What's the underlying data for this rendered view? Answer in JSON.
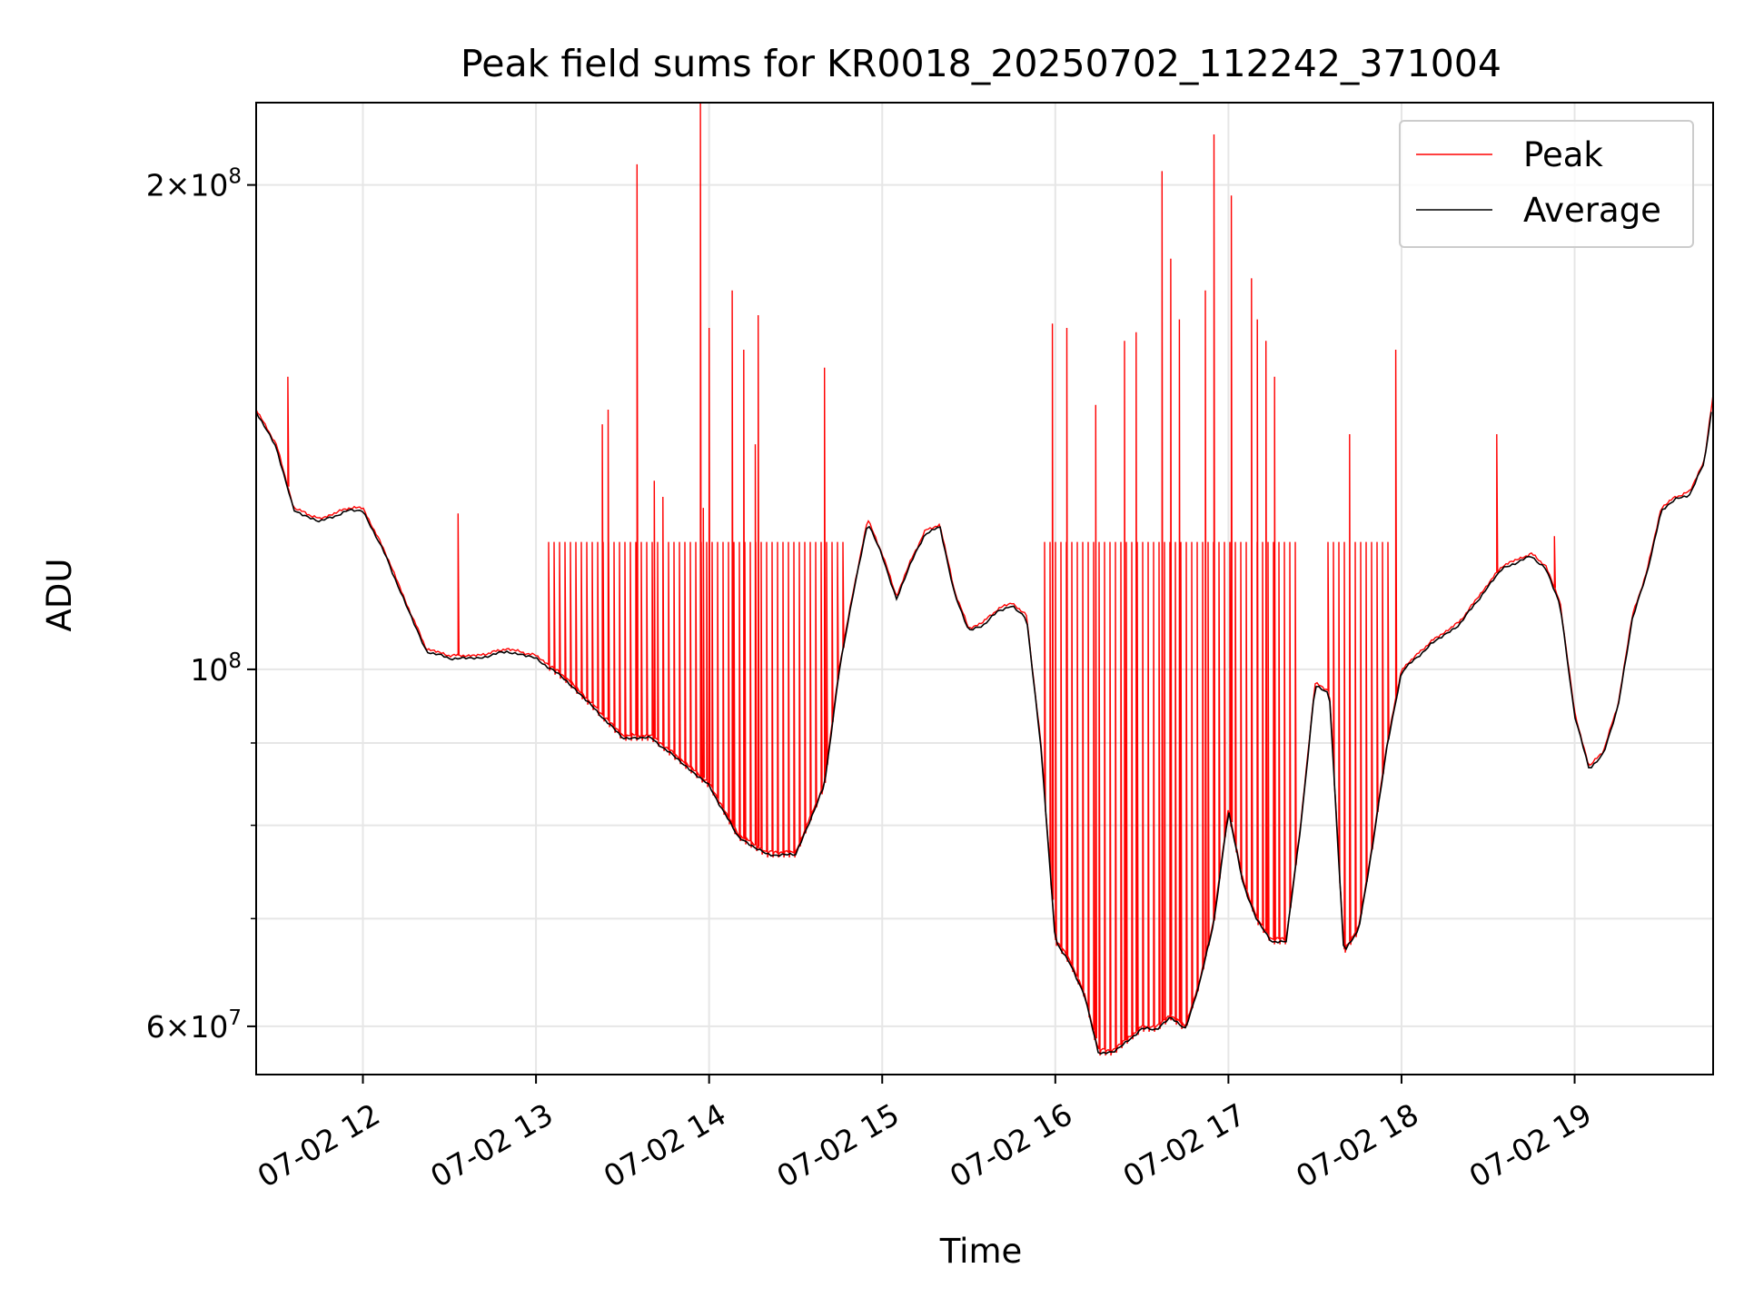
{
  "chart_data": {
    "type": "line",
    "title": "Peak field sums for KR0018_20250702_112242_371004",
    "xlabel": "Time",
    "ylabel": "ADU",
    "x_scale": "time",
    "y_scale": "log",
    "xlim": [
      "2025-07-02T11:23",
      "2025-07-02T19:48"
    ],
    "ylim": [
      56000000,
      225000000
    ],
    "x_ticks": [
      "07-02 12",
      "07-02 13",
      "07-02 14",
      "07-02 15",
      "07-02 16",
      "07-02 17",
      "07-02 18",
      "07-02 19"
    ],
    "y_major_ticks": [
      {
        "value": 100000000,
        "mantissa": "",
        "base": "10",
        "exp": "8"
      },
      {
        "value": 200000000,
        "mantissa": "2×",
        "base": "10",
        "exp": "8"
      },
      {
        "value": 60000000,
        "mantissa": "6×",
        "base": "10",
        "exp": "7"
      }
    ],
    "y_minor_ticks": [
      70000000,
      80000000,
      90000000
    ],
    "grid": true,
    "legend_position": "top-right",
    "series": [
      {
        "name": "Average",
        "color": "#000000",
        "x": [
          "2025-07-02T11:23",
          "2025-07-02T11:30",
          "2025-07-02T11:36",
          "2025-07-02T11:45",
          "2025-07-02T11:55",
          "2025-07-02T12:00",
          "2025-07-02T12:08",
          "2025-07-02T12:15",
          "2025-07-02T12:22",
          "2025-07-02T12:30",
          "2025-07-02T12:40",
          "2025-07-02T12:50",
          "2025-07-02T13:00",
          "2025-07-02T13:10",
          "2025-07-02T13:20",
          "2025-07-02T13:30",
          "2025-07-02T13:40",
          "2025-07-02T13:50",
          "2025-07-02T14:00",
          "2025-07-02T14:10",
          "2025-07-02T14:20",
          "2025-07-02T14:30",
          "2025-07-02T14:40",
          "2025-07-02T14:45",
          "2025-07-02T14:50",
          "2025-07-02T14:55",
          "2025-07-02T15:00",
          "2025-07-02T15:05",
          "2025-07-02T15:10",
          "2025-07-02T15:15",
          "2025-07-02T15:20",
          "2025-07-02T15:25",
          "2025-07-02T15:30",
          "2025-07-02T15:35",
          "2025-07-02T15:40",
          "2025-07-02T15:45",
          "2025-07-02T15:50",
          "2025-07-02T15:55",
          "2025-07-02T16:00",
          "2025-07-02T16:05",
          "2025-07-02T16:10",
          "2025-07-02T16:15",
          "2025-07-02T16:20",
          "2025-07-02T16:25",
          "2025-07-02T16:30",
          "2025-07-02T16:35",
          "2025-07-02T16:40",
          "2025-07-02T16:45",
          "2025-07-02T16:50",
          "2025-07-02T16:55",
          "2025-07-02T17:00",
          "2025-07-02T17:05",
          "2025-07-02T17:10",
          "2025-07-02T17:15",
          "2025-07-02T17:20",
          "2025-07-02T17:25",
          "2025-07-02T17:30",
          "2025-07-02T17:35",
          "2025-07-02T17:40",
          "2025-07-02T17:45",
          "2025-07-02T17:50",
          "2025-07-02T17:55",
          "2025-07-02T18:00",
          "2025-07-02T18:10",
          "2025-07-02T18:20",
          "2025-07-02T18:30",
          "2025-07-02T18:35",
          "2025-07-02T18:40",
          "2025-07-02T18:45",
          "2025-07-02T18:50",
          "2025-07-02T18:55",
          "2025-07-02T19:00",
          "2025-07-02T19:05",
          "2025-07-02T19:10",
          "2025-07-02T19:15",
          "2025-07-02T19:20",
          "2025-07-02T19:25",
          "2025-07-02T19:30",
          "2025-07-02T19:35",
          "2025-07-02T19:40",
          "2025-07-02T19:45",
          "2025-07-02T19:48"
        ],
        "values": [
          145000000,
          138000000,
          126000000,
          124000000,
          126000000,
          126000000,
          118000000,
          110000000,
          103000000,
          102000000,
          102000000,
          103000000,
          102000000,
          99000000,
          95000000,
          91000000,
          91000000,
          88000000,
          85000000,
          79000000,
          77000000,
          77000000,
          85000000,
          100000000,
          112000000,
          124000000,
          118000000,
          111000000,
          117000000,
          122000000,
          123000000,
          112000000,
          106000000,
          107000000,
          109000000,
          110000000,
          108000000,
          90000000,
          68000000,
          66000000,
          63000000,
          58000000,
          58000000,
          59000000,
          60000000,
          60000000,
          61000000,
          60000000,
          64000000,
          70000000,
          82000000,
          74000000,
          70000000,
          68000000,
          68000000,
          80000000,
          98000000,
          97000000,
          67000000,
          69000000,
          78000000,
          90000000,
          100000000,
          104000000,
          107000000,
          113000000,
          116000000,
          117000000,
          118000000,
          116000000,
          110000000,
          94000000,
          87000000,
          89000000,
          95000000,
          108000000,
          115000000,
          126000000,
          128000000,
          129000000,
          135000000,
          148000000
        ]
      },
      {
        "name": "Peak",
        "color": "#ff0000",
        "spikes": [
          {
            "x": "2025-07-02T11:34",
            "value": 152000000
          },
          {
            "x": "2025-07-02T12:33",
            "value": 125000000
          },
          {
            "x": "2025-07-02T13:23",
            "value": 142000000
          },
          {
            "x": "2025-07-02T13:25",
            "value": 145000000
          },
          {
            "x": "2025-07-02T13:35",
            "value": 206000000
          },
          {
            "x": "2025-07-02T13:41",
            "value": 131000000
          },
          {
            "x": "2025-07-02T13:44",
            "value": 128000000
          },
          {
            "x": "2025-07-02T13:58",
            "value": 126000000
          },
          {
            "x": "2025-07-02T14:08",
            "value": 172000000
          },
          {
            "x": "2025-07-02T14:12",
            "value": 158000000
          },
          {
            "x": "2025-07-02T14:16",
            "value": 138000000
          },
          {
            "x": "2025-07-02T13:57",
            "value": 225000000
          },
          {
            "x": "2025-07-02T14:00",
            "value": 163000000
          },
          {
            "x": "2025-07-02T14:17",
            "value": 166000000
          },
          {
            "x": "2025-07-02T14:40",
            "value": 154000000
          },
          {
            "x": "2025-07-02T15:59",
            "value": 164000000
          },
          {
            "x": "2025-07-02T16:04",
            "value": 163000000
          },
          {
            "x": "2025-07-02T16:14",
            "value": 146000000
          },
          {
            "x": "2025-07-02T16:24",
            "value": 160000000
          },
          {
            "x": "2025-07-02T16:28",
            "value": 162000000
          },
          {
            "x": "2025-07-02T16:37",
            "value": 204000000
          },
          {
            "x": "2025-07-02T16:40",
            "value": 180000000
          },
          {
            "x": "2025-07-02T16:43",
            "value": 165000000
          },
          {
            "x": "2025-07-02T16:52",
            "value": 172000000
          },
          {
            "x": "2025-07-02T16:55",
            "value": 215000000
          },
          {
            "x": "2025-07-02T17:01",
            "value": 197000000
          },
          {
            "x": "2025-07-02T17:08",
            "value": 175000000
          },
          {
            "x": "2025-07-02T17:10",
            "value": 165000000
          },
          {
            "x": "2025-07-02T17:13",
            "value": 160000000
          },
          {
            "x": "2025-07-02T17:16",
            "value": 152000000
          },
          {
            "x": "2025-07-02T17:42",
            "value": 140000000
          },
          {
            "x": "2025-07-02T17:58",
            "value": 158000000
          },
          {
            "x": "2025-07-02T18:33",
            "value": 140000000
          },
          {
            "x": "2025-07-02T18:53",
            "value": 121000000
          }
        ],
        "saturation_level": 120000000,
        "saturation_ranges": [
          [
            "2025-07-02T13:03",
            "2025-07-02T14:48"
          ],
          [
            "2025-07-02T15:56",
            "2025-07-02T17:25"
          ],
          [
            "2025-07-02T17:33",
            "2025-07-02T17:57"
          ]
        ]
      }
    ]
  }
}
